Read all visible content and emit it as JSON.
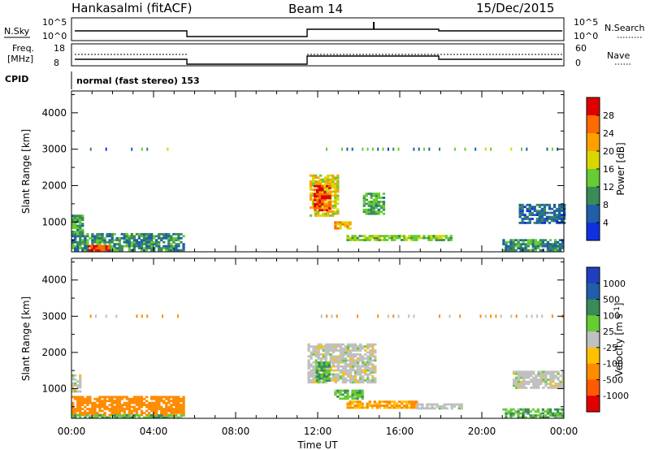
{
  "header": {
    "station": "Hankasalmi (fitACF)",
    "beam": "Beam 14",
    "date": "15/Dec/2015"
  },
  "top_panels": {
    "nsky_label": "N.Sky",
    "nsky_ticks": [
      "10^5",
      "10^0"
    ],
    "nsearch_label": "N.Search",
    "nsearch_ticks": [
      "10^5",
      "10^0"
    ],
    "freq_label_1": "Freq.",
    "freq_label_2": "[MHz]",
    "freq_ticks": [
      "18",
      "8"
    ],
    "nave_label": "Nave",
    "nave_ticks": [
      "60",
      "0"
    ],
    "cpid_label": "CPID",
    "cpid_text": "normal (fast stereo) 153"
  },
  "colorbars": {
    "power": {
      "label": "Power [dB]",
      "ticks": [
        "28",
        "24",
        "20",
        "16",
        "12",
        "8",
        "4"
      ],
      "colors": [
        "#e00000",
        "#ff6a00",
        "#ffa000",
        "#d8d800",
        "#66cc33",
        "#3a8a5a",
        "#1f5fa8",
        "#1030e0"
      ]
    },
    "velocity": {
      "label": "Velocity [m s",
      "label_sup": "-1",
      "label_end": "]",
      "ticks": [
        "1000",
        "500",
        "100",
        "25",
        "-25",
        "-100",
        "-500",
        "-1000"
      ],
      "colors": [
        "#1f3fbf",
        "#1f5fa8",
        "#3a8a5a",
        "#66cc33",
        "#c0c0c0",
        "#ffc000",
        "#ff8c00",
        "#ff5a00",
        "#e00000"
      ]
    }
  },
  "chart_data": [
    {
      "type": "heatmap",
      "title": "Power",
      "ylabel": "Slant Range [km]",
      "ylim": [
        180,
        4600
      ],
      "yticks": [
        "4000",
        "3000",
        "2000",
        "1000"
      ],
      "xlabel": "Time UT",
      "xticks": [
        "00:00",
        "04:00",
        "08:00",
        "12:00",
        "16:00",
        "20:00",
        "00:00"
      ],
      "xlim_hours": [
        0,
        24
      ],
      "regions": [
        {
          "t0": 0.0,
          "t1": 0.5,
          "r0": 650,
          "r1": 1200,
          "level": 12
        },
        {
          "t0": 0.0,
          "t1": 5.5,
          "r0": 200,
          "r1": 650,
          "level": 10
        },
        {
          "t0": 0.8,
          "t1": 1.8,
          "r0": 200,
          "r1": 350,
          "level": 26
        },
        {
          "t0": 11.6,
          "t1": 13.0,
          "r0": 1150,
          "r1": 2300,
          "level": 18
        },
        {
          "t0": 11.8,
          "t1": 12.6,
          "r0": 1300,
          "r1": 2000,
          "level": 26
        },
        {
          "t0": 12.8,
          "t1": 13.6,
          "r0": 800,
          "r1": 1000,
          "level": 20
        },
        {
          "t0": 13.4,
          "t1": 18.5,
          "r0": 480,
          "r1": 620,
          "level": 14
        },
        {
          "t0": 14.2,
          "t1": 15.2,
          "r0": 1200,
          "r1": 1800,
          "level": 12
        },
        {
          "t0": 21.8,
          "t1": 24.0,
          "r0": 950,
          "r1": 1450,
          "level": 8
        },
        {
          "t0": 21.0,
          "t1": 24.0,
          "r0": 200,
          "r1": 500,
          "level": 10
        }
      ]
    },
    {
      "type": "heatmap",
      "title": "Velocity",
      "ylabel": "Slant Range [km]",
      "ylim": [
        180,
        4600
      ],
      "yticks": [
        "4000",
        "3000",
        "2000",
        "1000"
      ],
      "xlabel": "Time UT",
      "xticks": [
        "00:00",
        "04:00",
        "08:00",
        "12:00",
        "16:00",
        "20:00",
        "00:00"
      ],
      "xlim_hours": [
        0,
        24
      ],
      "regions": [
        {
          "t0": 0.0,
          "t1": 0.4,
          "r0": 900,
          "r1": 1350,
          "level": 0
        },
        {
          "t0": 0.0,
          "t1": 5.5,
          "r0": 250,
          "r1": 800,
          "level": -150
        },
        {
          "t0": 0.0,
          "t1": 5.5,
          "r0": 180,
          "r1": 260,
          "level": 50
        },
        {
          "t0": 11.5,
          "t1": 14.8,
          "r0": 1150,
          "r1": 2200,
          "level": 0
        },
        {
          "t0": 11.9,
          "t1": 12.5,
          "r0": 1200,
          "r1": 1700,
          "level": 60
        },
        {
          "t0": 12.8,
          "t1": 14.2,
          "r0": 700,
          "r1": 950,
          "level": 50
        },
        {
          "t0": 13.4,
          "t1": 16.8,
          "r0": 450,
          "r1": 650,
          "level": -100
        },
        {
          "t0": 16.8,
          "t1": 19.0,
          "r0": 430,
          "r1": 560,
          "level": 0
        },
        {
          "t0": 21.5,
          "t1": 24.0,
          "r0": 1000,
          "r1": 1450,
          "level": 0
        },
        {
          "t0": 21.0,
          "t1": 24.0,
          "r0": 180,
          "r1": 450,
          "level": 50
        }
      ]
    }
  ]
}
